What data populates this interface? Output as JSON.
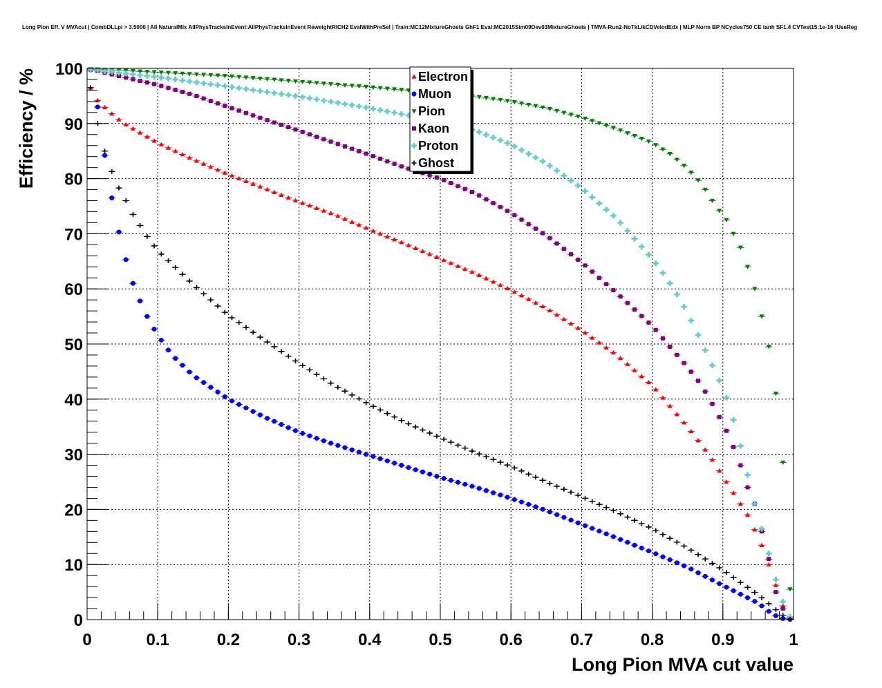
{
  "chart_data": {
    "type": "scatter",
    "title": "Long Pion Eff. V MVAcut | CombDLLpi > 3.5000 | All NaturalMix AllPhysTracksInEvent:AllPhysTracksInEvent ReweightRICH2 EvalWithPreSel | Train:MC12MixtureGhosts GhF1 Eval:MC2015Sim09Dev03MixtureGhosts | TMVA-Run2-NoTkLikCDVelodEdx | MLP Norm BP NCycles750 CE tanh SF1.4 CVTest15:1e-16 !UseReg",
    "xlabel": "Long Pion MVA cut value",
    "ylabel": "Efficiency / %",
    "xlim": [
      0,
      1
    ],
    "ylim": [
      0,
      100
    ],
    "xticks": [
      0,
      0.1,
      0.2,
      0.3,
      0.4,
      0.5,
      0.6,
      0.7,
      0.8,
      0.9,
      1
    ],
    "xtick_labels": [
      "0",
      "0.1",
      "0.2",
      "0.3",
      "0.4",
      "0.5",
      "0.6",
      "0.7",
      "0.8",
      "0.9",
      "1"
    ],
    "yticks": [
      0,
      10,
      20,
      30,
      40,
      50,
      60,
      70,
      80,
      90,
      100
    ],
    "ytick_labels": [
      "0",
      "10",
      "20",
      "30",
      "40",
      "50",
      "60",
      "70",
      "80",
      "90",
      "100"
    ],
    "grid": true,
    "legend_position": "top-center",
    "x_step": 0.01,
    "x_start": 0.005,
    "series": [
      {
        "name": "Electron",
        "color": "#ff0000",
        "marker": "triangle-up",
        "anchors": [
          [
            0.005,
            96.5
          ],
          [
            0.015,
            94.2
          ],
          [
            0.03,
            92.3
          ],
          [
            0.05,
            90.2
          ],
          [
            0.1,
            86.5
          ],
          [
            0.15,
            83.5
          ],
          [
            0.2,
            80.8
          ],
          [
            0.25,
            78.3
          ],
          [
            0.3,
            75.8
          ],
          [
            0.35,
            73.5
          ],
          [
            0.4,
            70.8
          ],
          [
            0.45,
            68.2
          ],
          [
            0.5,
            65.5
          ],
          [
            0.55,
            62.8
          ],
          [
            0.6,
            59.8
          ],
          [
            0.65,
            56.5
          ],
          [
            0.7,
            52.5
          ],
          [
            0.75,
            48.0
          ],
          [
            0.8,
            42.5
          ],
          [
            0.85,
            35.0
          ],
          [
            0.88,
            30.0
          ],
          [
            0.9,
            26.0
          ],
          [
            0.92,
            22.0
          ],
          [
            0.935,
            19.0
          ],
          [
            0.95,
            15.0
          ],
          [
            0.96,
            12.0
          ],
          [
            0.97,
            8.0
          ],
          [
            0.98,
            4.5
          ],
          [
            0.985,
            2.5
          ],
          [
            0.995,
            0.4
          ]
        ]
      },
      {
        "name": "Muon",
        "color": "#0000ff",
        "marker": "circle",
        "anchors": [
          [
            0.005,
            99.7
          ],
          [
            0.015,
            93.0
          ],
          [
            0.025,
            84.2
          ],
          [
            0.035,
            76.5
          ],
          [
            0.045,
            70.3
          ],
          [
            0.055,
            65.3
          ],
          [
            0.065,
            61.0
          ],
          [
            0.075,
            57.8
          ],
          [
            0.085,
            55.0
          ],
          [
            0.095,
            52.7
          ],
          [
            0.105,
            50.7
          ],
          [
            0.12,
            48.0
          ],
          [
            0.15,
            44.3
          ],
          [
            0.2,
            40.0
          ],
          [
            0.25,
            36.8
          ],
          [
            0.3,
            34.0
          ],
          [
            0.35,
            31.8
          ],
          [
            0.4,
            29.8
          ],
          [
            0.45,
            27.8
          ],
          [
            0.5,
            25.8
          ],
          [
            0.55,
            24.0
          ],
          [
            0.6,
            22.0
          ],
          [
            0.65,
            19.8
          ],
          [
            0.7,
            17.3
          ],
          [
            0.75,
            14.8
          ],
          [
            0.8,
            12.2
          ],
          [
            0.85,
            9.5
          ],
          [
            0.9,
            6.2
          ],
          [
            0.95,
            3.0
          ],
          [
            0.965,
            1.5
          ],
          [
            0.975,
            0.7
          ],
          [
            0.985,
            0.2
          ],
          [
            0.995,
            0.05
          ]
        ]
      },
      {
        "name": "Pion",
        "color": "#008000",
        "marker": "triangle-down",
        "anchors": [
          [
            0.005,
            99.9
          ],
          [
            0.1,
            99.3
          ],
          [
            0.2,
            98.6
          ],
          [
            0.3,
            97.6
          ],
          [
            0.4,
            96.6
          ],
          [
            0.5,
            95.5
          ],
          [
            0.55,
            94.9
          ],
          [
            0.6,
            94.0
          ],
          [
            0.65,
            92.8
          ],
          [
            0.7,
            91.1
          ],
          [
            0.75,
            89.0
          ],
          [
            0.8,
            86.5
          ],
          [
            0.825,
            84.5
          ],
          [
            0.85,
            81.8
          ],
          [
            0.87,
            79.0
          ],
          [
            0.89,
            75.0
          ],
          [
            0.905,
            72.5
          ],
          [
            0.915,
            70.0
          ],
          [
            0.925,
            67.5
          ],
          [
            0.935,
            64.0
          ],
          [
            0.945,
            60.0
          ],
          [
            0.955,
            55.0
          ],
          [
            0.965,
            49.5
          ],
          [
            0.975,
            41.0
          ],
          [
            0.985,
            28.5
          ],
          [
            0.995,
            5.5
          ]
        ]
      },
      {
        "name": "Kaon",
        "color": "#800080",
        "marker": "square",
        "anchors": [
          [
            0.005,
            99.8
          ],
          [
            0.1,
            97.0
          ],
          [
            0.15,
            95.2
          ],
          [
            0.2,
            93.0
          ],
          [
            0.25,
            90.8
          ],
          [
            0.3,
            88.7
          ],
          [
            0.35,
            86.5
          ],
          [
            0.4,
            84.3
          ],
          [
            0.45,
            82.0
          ],
          [
            0.5,
            80.0
          ],
          [
            0.55,
            77.3
          ],
          [
            0.6,
            73.8
          ],
          [
            0.65,
            69.7
          ],
          [
            0.7,
            64.8
          ],
          [
            0.75,
            59.2
          ],
          [
            0.8,
            53.3
          ],
          [
            0.825,
            49.5
          ],
          [
            0.85,
            45.8
          ],
          [
            0.87,
            42.5
          ],
          [
            0.89,
            38.0
          ],
          [
            0.91,
            33.0
          ],
          [
            0.925,
            28.0
          ],
          [
            0.935,
            24.0
          ],
          [
            0.945,
            21.0
          ],
          [
            0.955,
            16.0
          ],
          [
            0.965,
            11.0
          ],
          [
            0.975,
            5.0
          ],
          [
            0.985,
            2.0
          ],
          [
            0.995,
            0.3
          ]
        ]
      },
      {
        "name": "Proton",
        "color": "#66cccc",
        "marker": "cross",
        "anchors": [
          [
            0.005,
            99.8
          ],
          [
            0.1,
            98.4
          ],
          [
            0.2,
            96.7
          ],
          [
            0.3,
            94.9
          ],
          [
            0.4,
            92.8
          ],
          [
            0.5,
            90.4
          ],
          [
            0.55,
            88.7
          ],
          [
            0.6,
            86.2
          ],
          [
            0.65,
            82.8
          ],
          [
            0.7,
            78.3
          ],
          [
            0.75,
            72.7
          ],
          [
            0.8,
            65.5
          ],
          [
            0.82,
            62.0
          ],
          [
            0.84,
            58.0
          ],
          [
            0.86,
            53.0
          ],
          [
            0.88,
            47.5
          ],
          [
            0.9,
            42.0
          ],
          [
            0.91,
            38.5
          ],
          [
            0.92,
            34.0
          ],
          [
            0.93,
            29.0
          ],
          [
            0.94,
            23.5
          ],
          [
            0.95,
            18.5
          ],
          [
            0.96,
            14.5
          ],
          [
            0.97,
            9.5
          ],
          [
            0.98,
            5.0
          ],
          [
            0.99,
            1.5
          ],
          [
            0.995,
            0.5
          ]
        ]
      },
      {
        "name": "Ghost",
        "color": "#000000",
        "marker": "plus",
        "anchors": [
          [
            0.005,
            96.5
          ],
          [
            0.015,
            90.0
          ],
          [
            0.025,
            85.0
          ],
          [
            0.035,
            81.3
          ],
          [
            0.045,
            78.3
          ],
          [
            0.055,
            76.0
          ],
          [
            0.065,
            73.5
          ],
          [
            0.075,
            71.5
          ],
          [
            0.085,
            69.5
          ],
          [
            0.095,
            67.8
          ],
          [
            0.105,
            66.3
          ],
          [
            0.12,
            64.5
          ],
          [
            0.15,
            60.8
          ],
          [
            0.2,
            55.2
          ],
          [
            0.25,
            50.8
          ],
          [
            0.3,
            46.5
          ],
          [
            0.35,
            42.5
          ],
          [
            0.4,
            39.0
          ],
          [
            0.45,
            35.8
          ],
          [
            0.5,
            33.0
          ],
          [
            0.55,
            30.3
          ],
          [
            0.6,
            27.8
          ],
          [
            0.65,
            25.0
          ],
          [
            0.7,
            22.3
          ],
          [
            0.75,
            19.5
          ],
          [
            0.8,
            16.5
          ],
          [
            0.85,
            13.0
          ],
          [
            0.9,
            9.0
          ],
          [
            0.95,
            4.5
          ],
          [
            0.975,
            1.8
          ],
          [
            0.985,
            0.8
          ],
          [
            0.995,
            0.1
          ]
        ]
      }
    ]
  }
}
